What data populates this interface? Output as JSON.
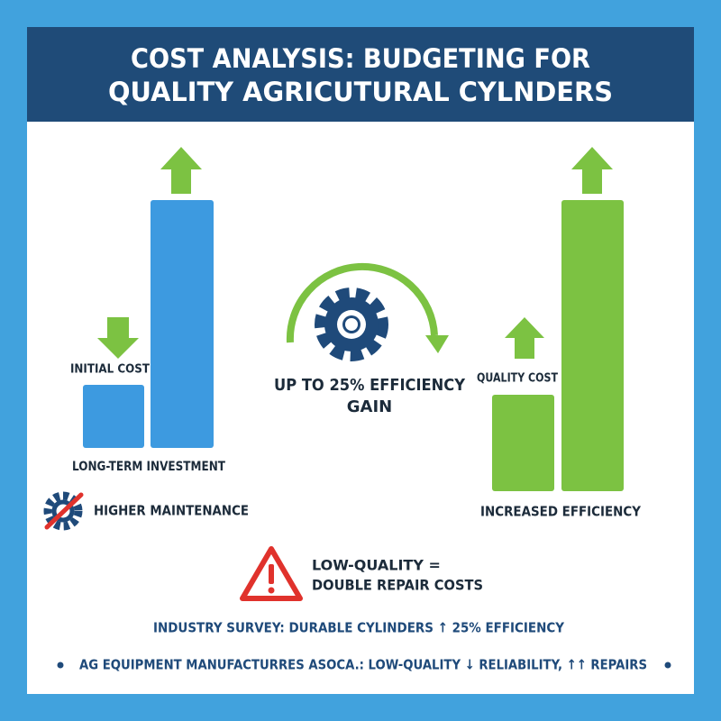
{
  "header": {
    "title_lines": [
      "COST ANALYSIS: BUDGETING FOR",
      "QUALITY AGRICUTURAL CYLNDERS"
    ]
  },
  "left_panel": {
    "initial_cost": "INITIAL COST",
    "long_term": "LONG-TERM INVESTMENT",
    "maintenance": "HIGHER MAINTENANCE"
  },
  "center": {
    "gain_lines": [
      "UP TO 25% EFFICIENCY",
      "GAIN"
    ]
  },
  "right_panel": {
    "quality_cost": "QUALITY COST",
    "efficiency": "INCREASED EFFICIENCY"
  },
  "warning": {
    "lines": [
      "LOW-QUALITY =",
      "DOUBLE REPAIR COSTS"
    ]
  },
  "footer": {
    "survey": "INDUSTRY SURVEY: DURABLE CYLINDERS ↑ 25% EFFICIENCY",
    "source": "AG EQUIPMENT MANUFACTURRES ASOCA.: LOW-QUALITY ↓ RELIABILITY, ↑↑ REPAIRS"
  }
}
